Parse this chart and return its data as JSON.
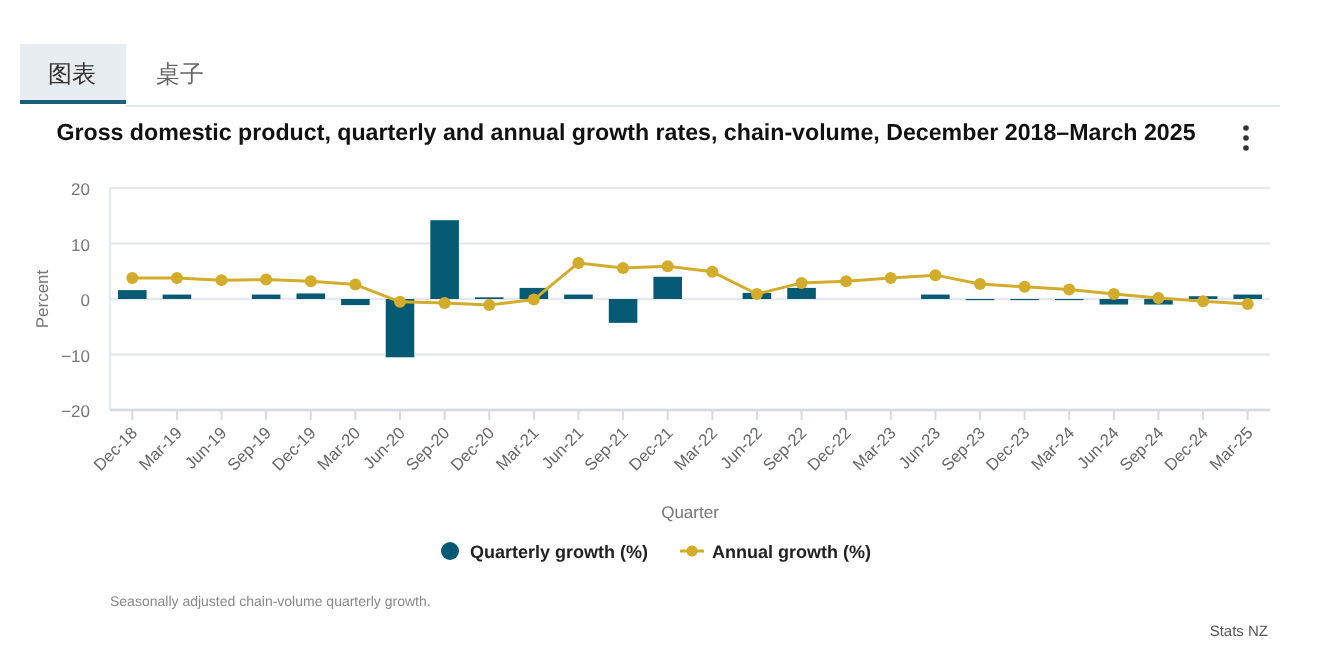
{
  "chart_data": {
    "type": "bar",
    "title": "Gross domestic product, quarterly and annual growth rates, chain-volume, December 2018–March 2025",
    "xlabel": "Quarter",
    "ylabel": "Percent",
    "categories": [
      "Dec-18",
      "Mar-19",
      "Jun-19",
      "Sep-19",
      "Dec-19",
      "Mar-20",
      "Jun-20",
      "Sep-20",
      "Dec-20",
      "Mar-21",
      "Jun-21",
      "Sep-21",
      "Dec-21",
      "Mar-22",
      "Jun-22",
      "Sep-22",
      "Dec-22",
      "Mar-23",
      "Jun-23",
      "Sep-23",
      "Dec-23",
      "Mar-24",
      "Jun-24",
      "Sep-24",
      "Dec-24",
      "Mar-25"
    ],
    "series": [
      {
        "name": "Quarterly growth (%)",
        "color": "#045a73",
        "values": [
          1.6,
          0.8,
          0,
          0.8,
          1.0,
          -1.1,
          -10.5,
          14.2,
          0.3,
          2.0,
          0.8,
          -4.3,
          4.0,
          0,
          1.1,
          2.0,
          0,
          0,
          0.8,
          -0.2,
          -0.2,
          -0.2,
          -1.0,
          -1.0,
          0.5,
          0.8
        ]
      },
      {
        "name": "Annual growth (%)",
        "type": "line",
        "color": "#d4ac2b",
        "marker": "circle",
        "values": [
          3.8,
          3.8,
          3.4,
          3.5,
          3.2,
          2.6,
          -0.5,
          -0.7,
          -1.1,
          -0.1,
          6.5,
          5.6,
          5.9,
          4.9,
          0.9,
          2.9,
          3.2,
          3.8,
          4.3,
          2.7,
          2.2,
          1.7,
          0.9,
          0.2,
          -0.4,
          -0.9
        ]
      }
    ],
    "ylim": [
      -20,
      20
    ],
    "yticks": [
      -20,
      -10,
      0,
      10,
      20
    ],
    "grid": "y",
    "legend": "bottom",
    "annotations": [
      "图表",
      "桌子",
      "Seasonally adjusted chain-volume quarterly growth.",
      "Stats NZ"
    ]
  }
}
